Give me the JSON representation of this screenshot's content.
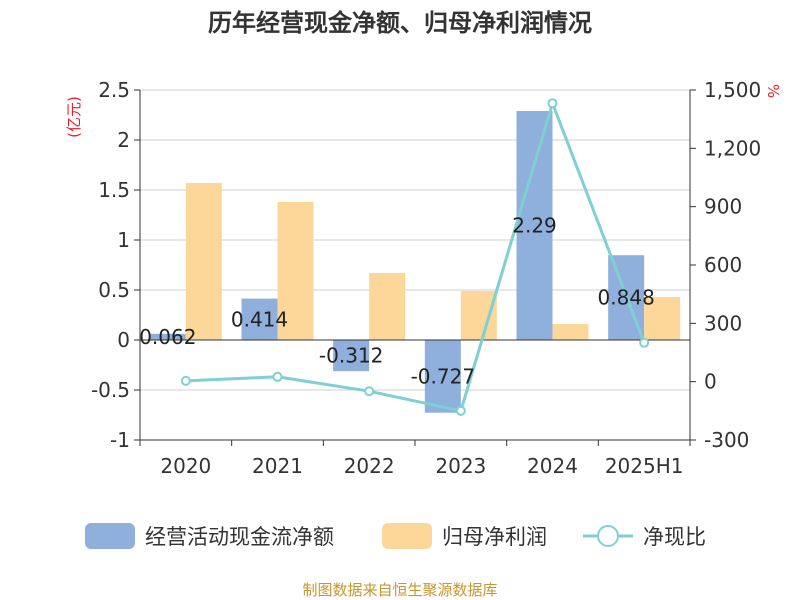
{
  "chart_data": {
    "type": "bar",
    "title": "历年经营现金净额、归母净利润情况",
    "categories": [
      "2020",
      "2021",
      "2022",
      "2023",
      "2024",
      "2025H1"
    ],
    "left_axis": {
      "unit": "(亿元)",
      "ylim": [
        -1,
        2.5
      ],
      "ticks": [
        2.5,
        2,
        1.5,
        1,
        0.5,
        0,
        -0.5,
        -1
      ],
      "tick_labels": [
        "2.5",
        "2",
        "1.5",
        "1",
        "0.5",
        "0",
        "-0.5",
        "-1"
      ]
    },
    "right_axis": {
      "unit": "%",
      "ylim": [
        -300,
        1500
      ],
      "ticks": [
        1500,
        1200,
        900,
        600,
        300,
        0,
        -300
      ],
      "tick_labels": [
        "1,500",
        "1,200",
        "900",
        "600",
        "300",
        "0",
        "-300"
      ]
    },
    "series": [
      {
        "name": "经营活动现金流净额",
        "kind": "bar",
        "axis": "left",
        "color": "#8fb0dc",
        "values": [
          0.062,
          0.414,
          -0.312,
          -0.727,
          2.29,
          0.848
        ],
        "labels": [
          "0.062",
          "0.414",
          "-0.312",
          "-0.727",
          "2.29",
          "0.848"
        ]
      },
      {
        "name": "归母净利润",
        "kind": "bar",
        "axis": "left",
        "color": "#fdd79a",
        "values": [
          1.57,
          1.38,
          0.67,
          0.49,
          0.16,
          0.43
        ]
      },
      {
        "name": "净现比",
        "kind": "line",
        "axis": "right",
        "color": "#7fd0d4",
        "values": [
          4,
          25,
          -49,
          -150,
          1432,
          200
        ]
      }
    ],
    "legend_position": "bottom",
    "grid": true,
    "source": "制图数据来自恒生聚源数据库"
  }
}
